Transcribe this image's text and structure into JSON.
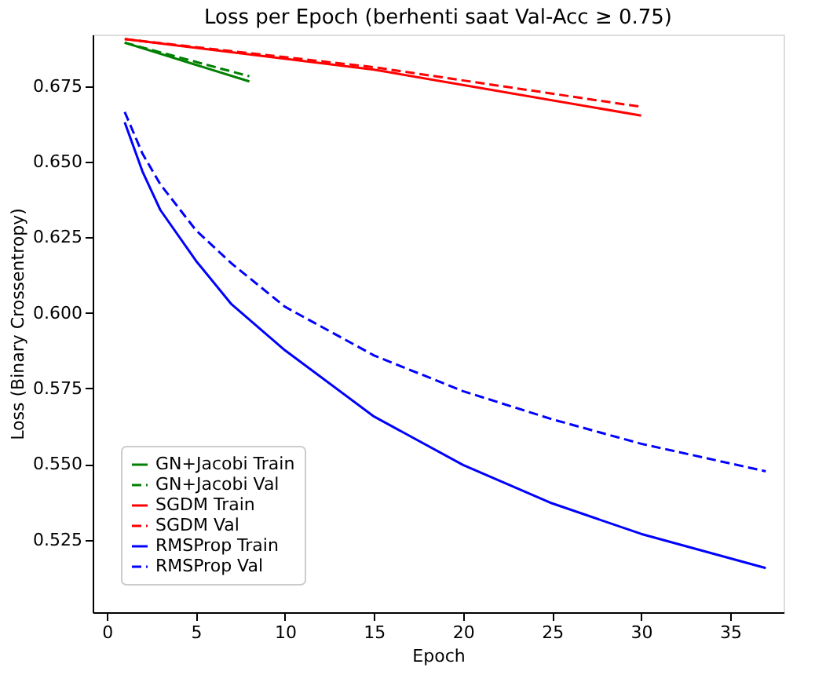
{
  "chart_data": {
    "type": "line",
    "title": "Loss per Epoch (berhenti saat Val-Acc ≥ 0.75)",
    "xlabel": "Epoch",
    "ylabel": "Loss (Binary Crossentropy)",
    "xlim": [
      -0.8,
      38.0
    ],
    "ylim": [
      0.501,
      0.692
    ],
    "xticks": [
      0,
      5,
      10,
      15,
      20,
      25,
      30,
      35
    ],
    "yticks": [
      0.525,
      {
        "value": 0.55,
        "label": "0.550"
      },
      0.575,
      {
        "value": 0.6,
        "label": "0.600"
      },
      0.625,
      {
        "value": 0.65,
        "label": "0.650"
      },
      0.675
    ],
    "grid": false,
    "legend": "bottom left",
    "marker": "none",
    "series": [
      {
        "name": "GN+Jacobi Train",
        "color": "#008000",
        "line_style": "solid",
        "x": [
          1,
          8
        ],
        "values": [
          0.6893,
          0.6765
        ]
      },
      {
        "name": "GN+Jacobi Val",
        "color": "#008000",
        "line_style": "dashed",
        "x": [
          1,
          8
        ],
        "values": [
          0.6893,
          0.6782
        ]
      },
      {
        "name": "SGDM Train",
        "color": "#ff0000",
        "line_style": "solid",
        "x": [
          1,
          15,
          30
        ],
        "values": [
          0.6905,
          0.6804,
          0.6652
        ]
      },
      {
        "name": "SGDM Val",
        "color": "#ff0000",
        "line_style": "dashed",
        "x": [
          1,
          15,
          30
        ],
        "values": [
          0.6905,
          0.6812,
          0.6681
        ]
      },
      {
        "name": "RMSProp Train",
        "color": "#0000ff",
        "line_style": "solid",
        "x": [
          1,
          2,
          3,
          5,
          7,
          10,
          15,
          20,
          25,
          30,
          37
        ],
        "values": [
          0.663,
          0.6467,
          0.634,
          0.6172,
          0.6028,
          0.5876,
          0.5657,
          0.5497,
          0.537,
          0.5269,
          0.5156
        ]
      },
      {
        "name": "RMSProp Val",
        "color": "#0000ff",
        "line_style": "dashed",
        "x": [
          1,
          2,
          3,
          5,
          7,
          10,
          15,
          20,
          25,
          30,
          37
        ],
        "values": [
          0.6664,
          0.6526,
          0.6425,
          0.6273,
          0.6163,
          0.602,
          0.5859,
          0.5741,
          0.5648,
          0.5567,
          0.5476
        ]
      }
    ]
  }
}
